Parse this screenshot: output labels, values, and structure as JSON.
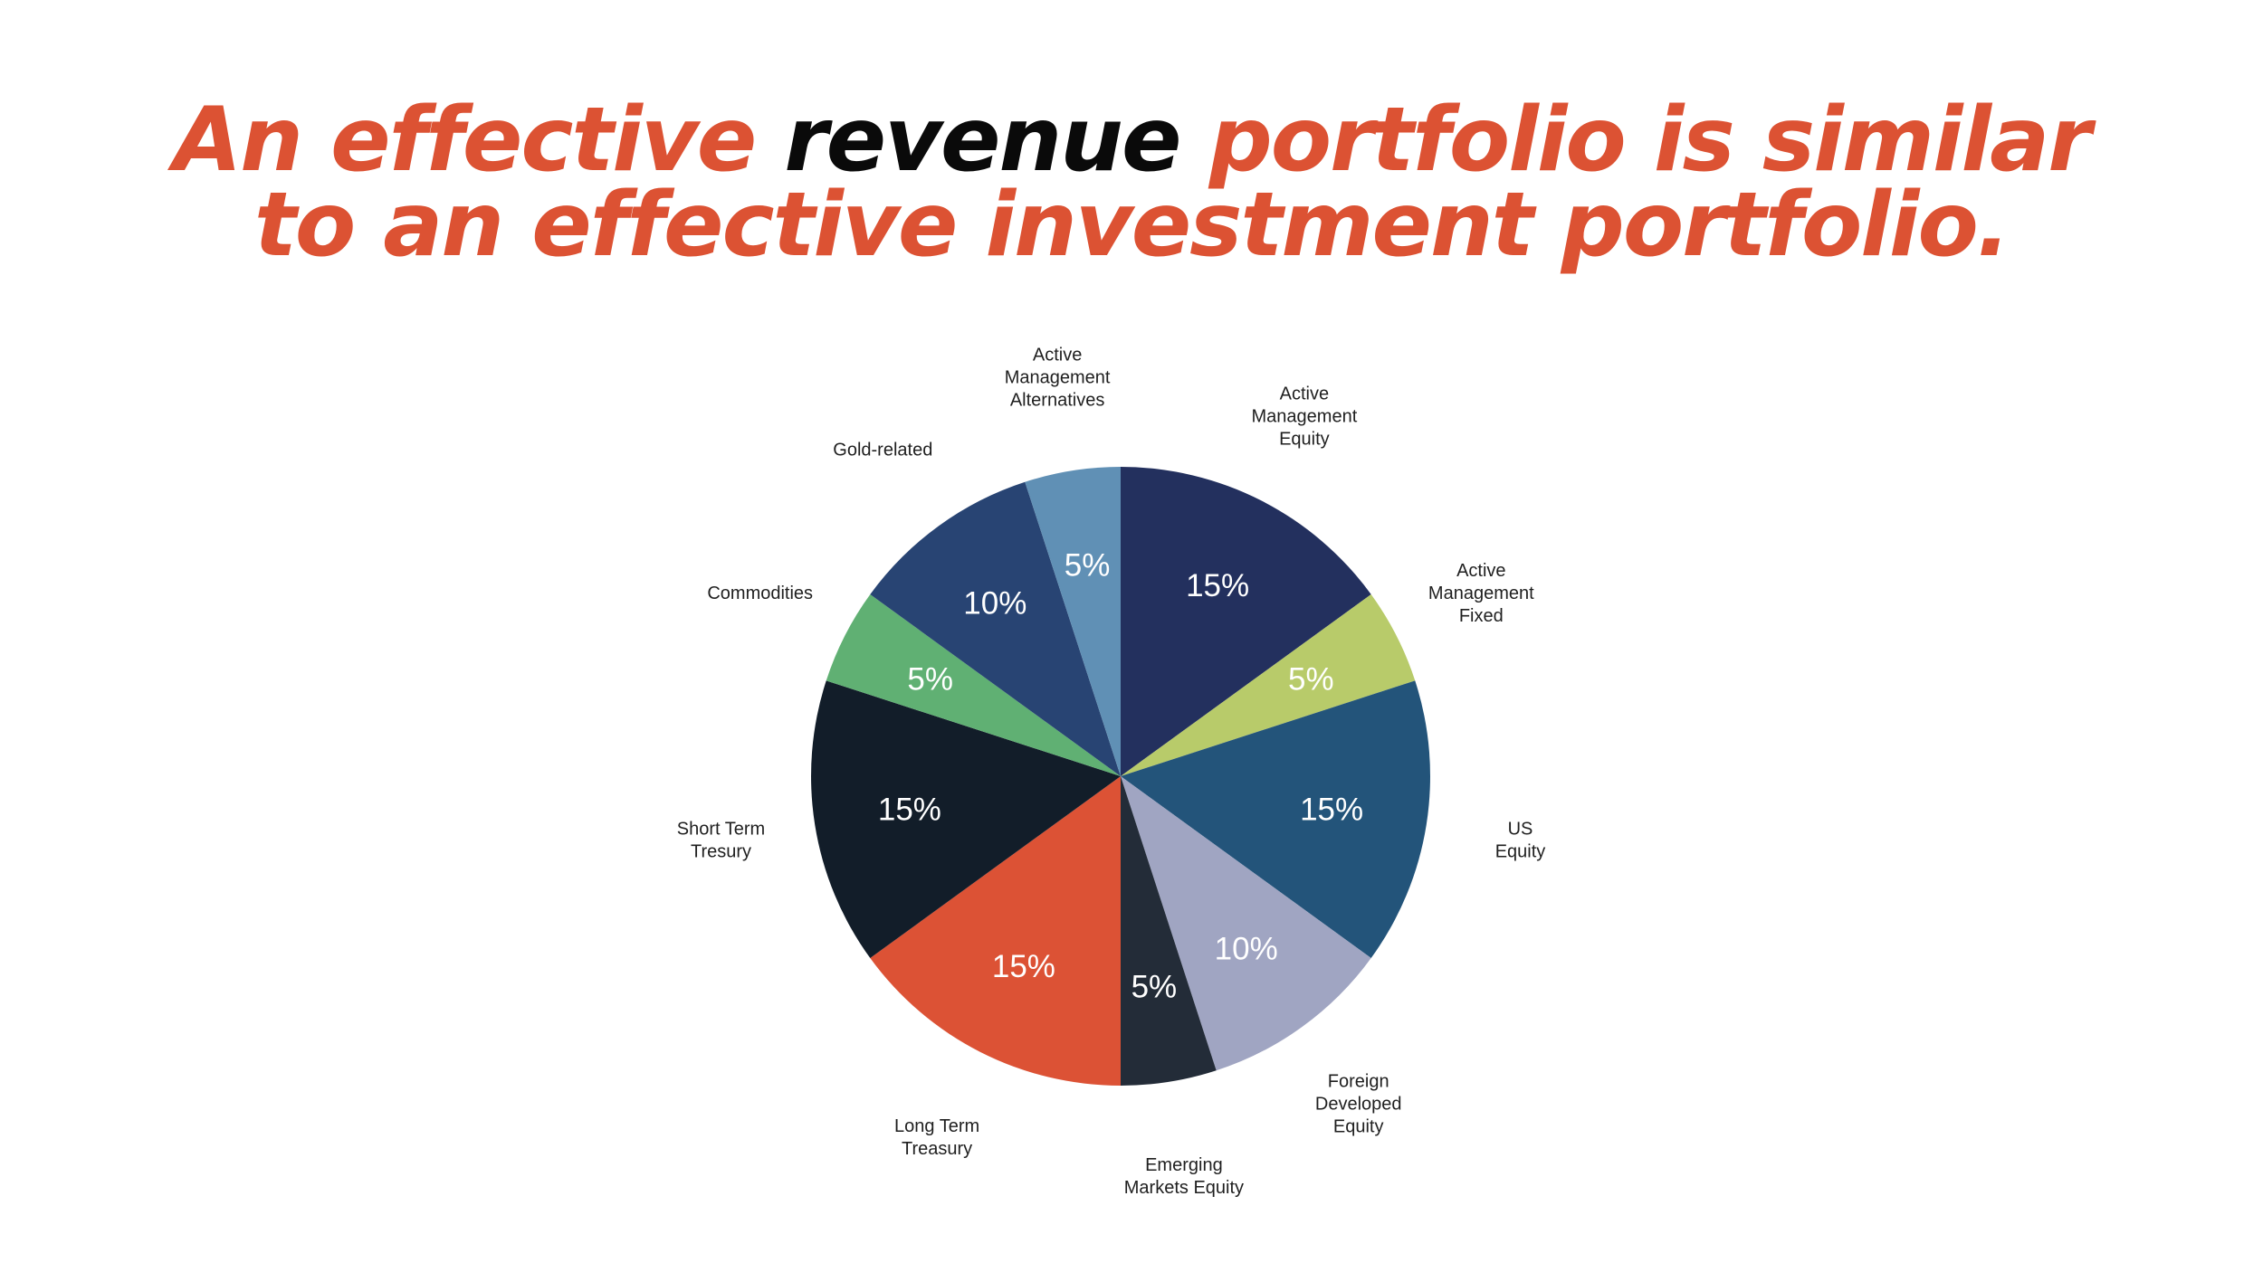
{
  "slide": {
    "title_line1_pre": "An effective ",
    "title_line1_highlight": "revenue",
    "title_line1_post": " portfolio is similar",
    "title_line2": "to an effective investment portfolio.",
    "accent_color": "#dc5233",
    "highlight_color": "#0a0a0a"
  },
  "chart_data": {
    "type": "pie",
    "title": "",
    "start_angle_deg": 0,
    "direction": "clockwise",
    "legend": "none",
    "slices": [
      {
        "label_lines": [
          "Active",
          "Management",
          "Equity"
        ],
        "value": 15,
        "value_label": "15%",
        "color": "#23305e"
      },
      {
        "label_lines": [
          "Active",
          "Management",
          "Fixed"
        ],
        "value": 5,
        "value_label": "5%",
        "color": "#b8cb6a"
      },
      {
        "label_lines": [
          "US",
          "Equity"
        ],
        "value": 15,
        "value_label": "15%",
        "color": "#23547a"
      },
      {
        "label_lines": [
          "Foreign",
          "Developed",
          "Equity"
        ],
        "value": 10,
        "value_label": "10%",
        "color": "#a0a5c2"
      },
      {
        "label_lines": [
          "Emerging",
          "Markets Equity"
        ],
        "value": 5,
        "value_label": "5%",
        "color": "#232c38"
      },
      {
        "label_lines": [
          "Long Term",
          "Treasury"
        ],
        "value": 15,
        "value_label": "15%",
        "color": "#dc5235"
      },
      {
        "label_lines": [
          "Short Term",
          "Tresury"
        ],
        "value": 15,
        "value_label": "15%",
        "color": "#121d29"
      },
      {
        "label_lines": [
          "Commodities"
        ],
        "value": 5,
        "value_label": "5%",
        "color": "#60b073"
      },
      {
        "label_lines": [
          "Gold-related"
        ],
        "value": 10,
        "value_label": "10%",
        "color": "#284473"
      },
      {
        "label_lines": [
          "Active",
          "Management",
          "Alternatives"
        ],
        "value": 5,
        "value_label": "5%",
        "color": "#6090b5"
      }
    ]
  }
}
